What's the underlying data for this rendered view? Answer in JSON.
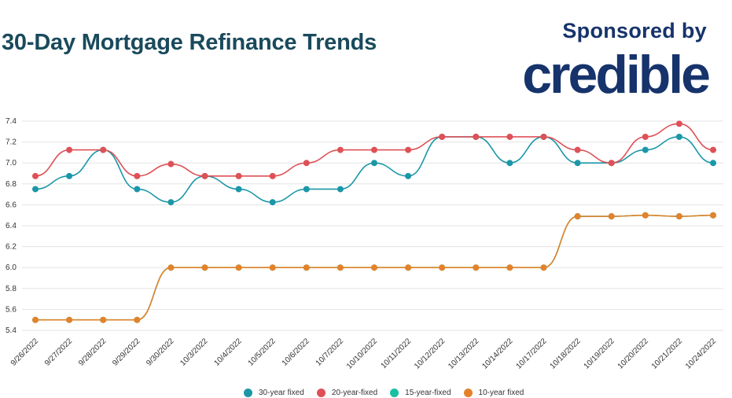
{
  "header": {
    "title": "30-Day Mortgage Refinance Trends",
    "sponsor_label": "Sponsored by",
    "sponsor_brand": "credible"
  },
  "colors": {
    "title": "#1a4a5c",
    "brand": "#16336b",
    "series": [
      "#1b97a8",
      "#de5157",
      "#16c0a0",
      "#e4822a"
    ]
  },
  "chart_data": {
    "type": "line",
    "categories": [
      "9/26/2022",
      "9/27/2022",
      "9/28/2022",
      "9/29/2022",
      "9/30/2022",
      "10/3/2022",
      "10/4/2022",
      "10/5/2022",
      "10/6/2022",
      "10/7/2022",
      "10/10/2022",
      "10/11/2022",
      "10/12/2022",
      "10/13/2022",
      "10/14/2022",
      "10/17/2022",
      "10/18/2022",
      "10/19/2022",
      "10/20/2022",
      "10/21/2022",
      "10/24/2022"
    ],
    "series": [
      {
        "name": "30-year fixed",
        "values": [
          6.75,
          6.875,
          7.125,
          6.75,
          6.625,
          6.875,
          6.75,
          6.625,
          6.75,
          6.75,
          7.0,
          6.875,
          7.25,
          7.25,
          7.0,
          7.25,
          7.0,
          7.0,
          7.125,
          7.25,
          7.0
        ]
      },
      {
        "name": "20-year-fixed",
        "values": [
          6.875,
          7.125,
          7.125,
          6.875,
          6.99,
          6.875,
          6.875,
          6.875,
          7.0,
          7.125,
          7.125,
          7.125,
          7.25,
          7.25,
          7.25,
          7.25,
          7.125,
          7.0,
          7.25,
          7.375,
          7.125
        ]
      },
      {
        "name": "15-year-fixed",
        "values": [
          5.5,
          5.5,
          5.5,
          5.5,
          6.0,
          6.0,
          6.0,
          6.0,
          6.0,
          6.0,
          6.0,
          6.0,
          6.0,
          6.0,
          6.0,
          6.0,
          6.49,
          6.49,
          6.5,
          6.49,
          6.5
        ]
      },
      {
        "name": "10-year fixed",
        "values": [
          5.5,
          5.5,
          5.5,
          5.5,
          6.0,
          6.0,
          6.0,
          6.0,
          6.0,
          6.0,
          6.0,
          6.0,
          6.0,
          6.0,
          6.0,
          6.0,
          6.49,
          6.49,
          6.5,
          6.49,
          6.5
        ]
      }
    ],
    "y_ticks": [
      "5.4",
      "5.6",
      "5.8",
      "6.0",
      "6.2",
      "6.4",
      "6.6",
      "6.8",
      "7.0",
      "7.2",
      "7.4"
    ],
    "ylim": [
      5.4,
      7.4
    ],
    "grid": true,
    "legend": "bottom-center",
    "smooth": true
  }
}
